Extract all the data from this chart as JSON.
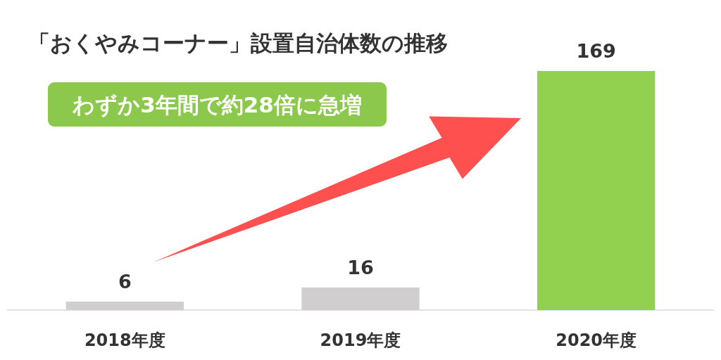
{
  "chart_data": {
    "type": "bar",
    "title": "「おくやみコーナー」設置自治体数の推移",
    "categories": [
      "2018年度",
      "2019年度",
      "2020年度"
    ],
    "values": [
      6,
      16,
      169
    ],
    "colors": [
      "#d0cece",
      "#d0cece",
      "#92d050"
    ],
    "data_labels": true,
    "annotations": [
      "わずか3年間で約28倍に急増"
    ]
  }
}
